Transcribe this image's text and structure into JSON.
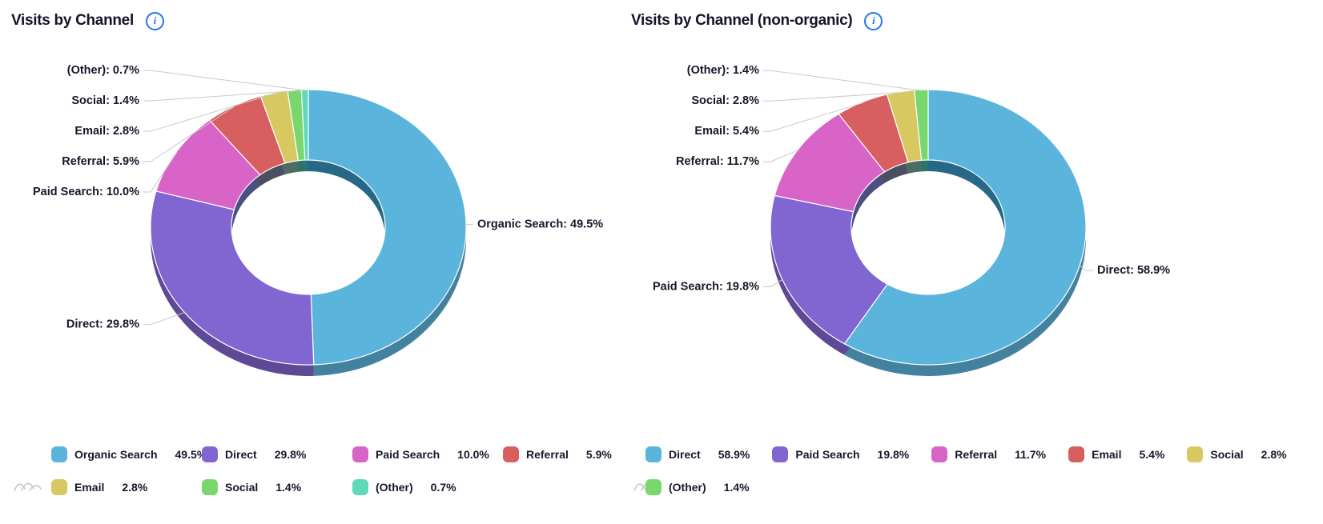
{
  "page": {
    "background": "#ffffff",
    "accent_blue": "#2575f0",
    "text_color": "#17172a"
  },
  "icons": {
    "info": "info-icon",
    "watermark": "amcharts-logo-wave"
  },
  "formats": {
    "slice_label": "{label}: {value}%",
    "legend_value": "{value}%"
  },
  "chart_data": [
    {
      "type": "pie",
      "title": "Visits by Channel",
      "labels": [
        "Organic Search",
        "Direct",
        "Paid Search",
        "Referral",
        "Email",
        "Social",
        "(Other)"
      ],
      "values": [
        49.5,
        29.8,
        10.0,
        5.9,
        2.8,
        1.4,
        0.7
      ],
      "colors": [
        "#5BB4DB",
        "#8165D1",
        "#D964C8",
        "#D75F5F",
        "#D8C862",
        "#78D86E",
        "#5FD9B8"
      ],
      "slice_labels": [
        "Organic Search: 49.5%",
        "Direct: 29.8%",
        "Paid Search: 10.0%",
        "Referral: 5.9%",
        "Email: 2.8%",
        "Social: 1.4%",
        "(Other): 0.7%"
      ],
      "legend_position": "bottom",
      "donut": true,
      "depth_3d": true
    },
    {
      "type": "pie",
      "title": "Visits by Channel (non-organic)",
      "labels": [
        "Direct",
        "Paid Search",
        "Referral",
        "Email",
        "Social",
        "(Other)"
      ],
      "values": [
        58.9,
        19.8,
        11.7,
        5.4,
        2.8,
        1.4
      ],
      "colors": [
        "#5BB4DB",
        "#8165D1",
        "#D964C8",
        "#D75F5F",
        "#D8C862",
        "#78D86E"
      ],
      "slice_labels": [
        "Direct: 58.9%",
        "Paid Search: 19.8%",
        "Referral: 11.7%",
        "Email: 5.4%",
        "Social: 2.8%",
        "(Other): 1.4%"
      ],
      "legend_position": "bottom",
      "donut": true,
      "depth_3d": true
    }
  ]
}
